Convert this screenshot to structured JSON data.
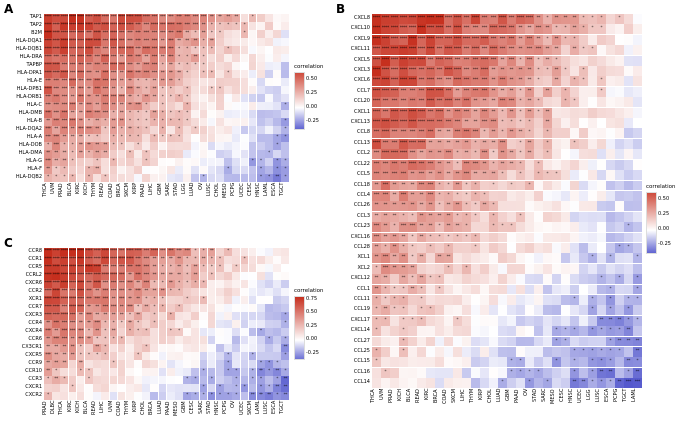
{
  "figure": {
    "background": "#ffffff",
    "note": "Pan-cancer correlation heatmaps; cell values are visual estimates interpolated from per-row [left,mid,right] correlation profiles read off the color scale.",
    "colorscale": {
      "high": "#c62f1e",
      "mid": "#ffffff",
      "low": "#4348c8",
      "vmax": 0.72,
      "vmin": -0.45
    },
    "significance": {
      "one": 0.18,
      "two": 0.28,
      "three": 0.38,
      "four": 0.5
    }
  },
  "chart_data": [
    {
      "type": "heatmap",
      "id": "A",
      "label": "A",
      "rows": [
        "TAP1",
        "TAP2",
        "B2M",
        "HLA-DQA1",
        "HLA-DQB1",
        "HLA-DRA",
        "TAPBP",
        "HLA-DPA1",
        "HLA-E",
        "HLA-DPB1",
        "HLA-DRB1",
        "HLA-C",
        "HLA-DMB",
        "HLA-B",
        "HLA-DQA2",
        "HLA-A",
        "HLA-DOB",
        "HLA-DMA",
        "HLA-G",
        "HLA-F",
        "HLA-DQB2"
      ],
      "cols": [
        "THCA",
        "UVM",
        "PRAD",
        "BLCA",
        "KIRC",
        "KICH",
        "THYM",
        "READ",
        "COAD",
        "BRCA",
        "SKCM",
        "KIRP",
        "PAAD",
        "LIHC",
        "GBM",
        "SARC",
        "STAD",
        "LGG",
        "LUAD",
        "OV",
        "LUSC",
        "CHOL",
        "MESO",
        "PCPG",
        "UCEC",
        "CESC",
        "HNSC",
        "LAML",
        "ESCA",
        "TGCT"
      ],
      "noise_amplitude": 0.1,
      "row_profiles": [
        [
          0.68,
          0.46,
          0.05
        ],
        [
          0.66,
          0.44,
          0.03
        ],
        [
          0.64,
          0.42,
          0.01
        ],
        [
          0.62,
          0.4,
          -0.01
        ],
        [
          0.6,
          0.38,
          -0.03
        ],
        [
          0.58,
          0.36,
          -0.04
        ],
        [
          0.56,
          0.34,
          -0.06
        ],
        [
          0.54,
          0.32,
          -0.07
        ],
        [
          0.52,
          0.3,
          -0.09
        ],
        [
          0.5,
          0.28,
          -0.1
        ],
        [
          0.48,
          0.26,
          -0.12
        ],
        [
          0.46,
          0.24,
          -0.13
        ],
        [
          0.44,
          0.22,
          -0.15
        ],
        [
          0.42,
          0.2,
          -0.16
        ],
        [
          0.4,
          0.18,
          -0.18
        ],
        [
          0.38,
          0.16,
          -0.19
        ],
        [
          0.36,
          0.13,
          -0.21
        ],
        [
          0.34,
          0.1,
          -0.22
        ],
        [
          0.32,
          0.07,
          -0.24
        ],
        [
          0.3,
          0.04,
          -0.27
        ],
        [
          0.28,
          0.01,
          -0.3
        ]
      ],
      "legend": {
        "title": "correlation",
        "top_value": 0.62,
        "bottom_value": -0.38,
        "ticks": [
          {
            "label": "0.50",
            "value": 0.5
          },
          {
            "label": "0.25",
            "value": 0.25
          },
          {
            "label": "0.00",
            "value": 0.0
          },
          {
            "label": "-0.25",
            "value": -0.25
          }
        ]
      }
    },
    {
      "type": "heatmap",
      "id": "B",
      "label": "B",
      "rows": [
        "CXCL8",
        "CXCL10",
        "CXCL9",
        "CXCL11",
        "CXCL5",
        "CXCL3",
        "CXCL6",
        "CCL7",
        "CCL20",
        "CXCL1",
        "CXCL13",
        "CCL8",
        "CCL13",
        "CCL2",
        "CCL22",
        "CCL5",
        "CCL18",
        "CCL4",
        "CCL26",
        "CCL3",
        "CCL23",
        "CXCL16",
        "CCL28",
        "XCL1",
        "XCL2",
        "CXCL12",
        "CCL1",
        "CCL11",
        "CCL19",
        "CXCL17",
        "CXCL14",
        "CCL27",
        "CCL25",
        "CCL15",
        "CCL16",
        "CCL14"
      ],
      "cols": [
        "THCA",
        "UVM",
        "PRAD",
        "KICH",
        "BLCA",
        "READ",
        "KIRC",
        "BRCA",
        "COAD",
        "SKCM",
        "LIHC",
        "THYM",
        "KIRP",
        "CHOL",
        "LUAD",
        "GBM",
        "PAAD",
        "OV",
        "STAD",
        "SARC",
        "MESO",
        "CESC",
        "HNSC",
        "UCEC",
        "LGG",
        "LUSC",
        "ESCA",
        "PCPG",
        "TGCT",
        "LAML"
      ],
      "noise_amplitude": 0.11,
      "row_profiles": [
        [
          0.72,
          0.48,
          0.05
        ],
        [
          0.7,
          0.46,
          0.04
        ],
        [
          0.69,
          0.45,
          0.03
        ],
        [
          0.67,
          0.43,
          0.02
        ],
        [
          0.65,
          0.41,
          0.01
        ],
        [
          0.63,
          0.4,
          0.0
        ],
        [
          0.62,
          0.38,
          -0.01
        ],
        [
          0.6,
          0.36,
          -0.02
        ],
        [
          0.58,
          0.35,
          -0.03
        ],
        [
          0.57,
          0.33,
          -0.04
        ],
        [
          0.55,
          0.31,
          -0.05
        ],
        [
          0.53,
          0.3,
          -0.06
        ],
        [
          0.51,
          0.28,
          -0.07
        ],
        [
          0.5,
          0.26,
          -0.08
        ],
        [
          0.48,
          0.24,
          -0.09
        ],
        [
          0.46,
          0.23,
          -0.1
        ],
        [
          0.45,
          0.21,
          -0.11
        ],
        [
          0.43,
          0.19,
          -0.12
        ],
        [
          0.41,
          0.18,
          -0.13
        ],
        [
          0.39,
          0.16,
          -0.14
        ],
        [
          0.38,
          0.14,
          -0.15
        ],
        [
          0.36,
          0.12,
          -0.16
        ],
        [
          0.34,
          0.11,
          -0.17
        ],
        [
          0.33,
          0.09,
          -0.18
        ],
        [
          0.31,
          0.07,
          -0.19
        ],
        [
          0.29,
          0.06,
          -0.2
        ],
        [
          0.27,
          0.04,
          -0.21
        ],
        [
          0.26,
          0.02,
          -0.22
        ],
        [
          0.24,
          0.0,
          -0.23
        ],
        [
          0.22,
          -0.01,
          -0.24
        ],
        [
          0.21,
          -0.03,
          -0.25
        ],
        [
          0.19,
          -0.05,
          -0.26
        ],
        [
          0.17,
          -0.06,
          -0.27
        ],
        [
          0.15,
          -0.08,
          -0.29
        ],
        [
          0.14,
          -0.1,
          -0.3
        ],
        [
          0.12,
          -0.12,
          -0.32
        ]
      ],
      "legend": {
        "title": "correlation",
        "top_value": 0.62,
        "bottom_value": -0.38,
        "ticks": [
          {
            "label": "0.50",
            "value": 0.5
          },
          {
            "label": "0.25",
            "value": 0.25
          },
          {
            "label": "0.00",
            "value": 0.0
          },
          {
            "label": "-0.25",
            "value": -0.25
          }
        ]
      }
    },
    {
      "type": "heatmap",
      "id": "C",
      "label": "C",
      "rows": [
        "CCR8",
        "CCR1",
        "CCR5",
        "CCRL2",
        "CXCR6",
        "CCR2",
        "XCR1",
        "CCR7",
        "CXCR3",
        "CCR4",
        "CXCR4",
        "CCR6",
        "CX3CR1",
        "CXCR5",
        "CCR9",
        "CCR10",
        "CCR3",
        "CXCR1",
        "CXCR2"
      ],
      "cols": [
        "PRAD",
        "DLBC",
        "THCA",
        "KIRC",
        "KICH",
        "BLCA",
        "READ",
        "LIHC",
        "UVM",
        "COAD",
        "THYM",
        "KIRP",
        "CHOL",
        "BRCA",
        "LUAD",
        "PAAD",
        "MESO",
        "GBM",
        "CESC",
        "SARC",
        "STAD",
        "HNSC",
        "PCPG",
        "OV",
        "UCEC",
        "SKCM",
        "LAML",
        "LUSC",
        "ESCA",
        "TGCT"
      ],
      "noise_amplitude": 0.1,
      "row_profiles": [
        [
          0.78,
          0.42,
          0.0
        ],
        [
          0.74,
          0.39,
          -0.02
        ],
        [
          0.71,
          0.36,
          -0.04
        ],
        [
          0.67,
          0.33,
          -0.05
        ],
        [
          0.64,
          0.3,
          -0.07
        ],
        [
          0.6,
          0.27,
          -0.09
        ],
        [
          0.57,
          0.25,
          -0.11
        ],
        [
          0.53,
          0.22,
          -0.12
        ],
        [
          0.5,
          0.19,
          -0.14
        ],
        [
          0.46,
          0.16,
          -0.16
        ],
        [
          0.43,
          0.13,
          -0.18
        ],
        [
          0.39,
          0.1,
          -0.19
        ],
        [
          0.36,
          0.07,
          -0.21
        ],
        [
          0.32,
          0.04,
          -0.23
        ],
        [
          0.29,
          0.01,
          -0.25
        ],
        [
          0.25,
          -0.02,
          -0.26
        ],
        [
          0.22,
          -0.05,
          -0.28
        ],
        [
          0.18,
          -0.07,
          -0.3
        ],
        [
          0.15,
          -0.1,
          -0.32
        ]
      ],
      "legend": {
        "title": "correlation",
        "top_value": 0.8,
        "bottom_value": -0.35,
        "ticks": [
          {
            "label": "0.75",
            "value": 0.75
          },
          {
            "label": "0.50",
            "value": 0.5
          },
          {
            "label": "0.25",
            "value": 0.25
          },
          {
            "label": "0.00",
            "value": 0.0
          },
          {
            "label": "-0.25",
            "value": -0.25
          }
        ]
      }
    }
  ]
}
